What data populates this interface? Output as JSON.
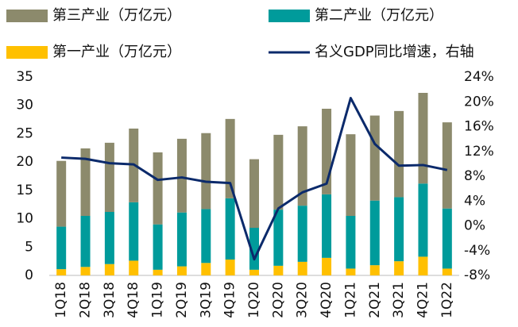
{
  "chart_data": {
    "type": "bar",
    "categories": [
      "1Q18",
      "2Q18",
      "3Q18",
      "4Q18",
      "1Q19",
      "2Q19",
      "3Q19",
      "4Q19",
      "1Q20",
      "2Q20",
      "3Q20",
      "4Q20",
      "1Q21",
      "2Q21",
      "3Q21",
      "4Q21",
      "1Q22"
    ],
    "stacked": true,
    "series": [
      {
        "name": "第三产业（万亿元）",
        "color": "#8c8a6c",
        "values": [
          11.6,
          11.9,
          12.2,
          13.0,
          12.7,
          13.0,
          13.4,
          14.0,
          12.1,
          13.2,
          14.0,
          15.1,
          14.4,
          15.0,
          15.2,
          16.0,
          15.2
        ]
      },
      {
        "name": "第二产业（万亿元）",
        "color": "#009b9b",
        "values": [
          7.5,
          9.0,
          9.2,
          10.3,
          8.0,
          9.5,
          9.5,
          10.8,
          7.4,
          9.9,
          9.9,
          11.2,
          9.3,
          11.4,
          11.3,
          12.9,
          10.6
        ]
      },
      {
        "name": "第一产业（万亿元）",
        "color": "#ffc000",
        "values": [
          1.1,
          1.5,
          2.0,
          2.6,
          1.0,
          1.6,
          2.2,
          2.8,
          1.0,
          1.7,
          2.4,
          3.1,
          1.2,
          1.8,
          2.5,
          3.3,
          1.2
        ]
      },
      {
        "name": "名义GDP同比增速，右轴",
        "color": "#0b2a6b",
        "type": "line",
        "axis": "y2",
        "values": [
          11.0,
          10.8,
          10.1,
          9.9,
          7.4,
          7.8,
          7.1,
          6.9,
          -5.4,
          2.8,
          5.4,
          6.8,
          20.6,
          13.2,
          9.7,
          9.8,
          9.0
        ]
      }
    ],
    "ylim": [
      0,
      35
    ],
    "yticks": [
      0,
      5,
      10,
      15,
      20,
      25,
      30,
      35
    ],
    "y2lim": [
      -8,
      24
    ],
    "y2ticks": [
      {
        "value": -8,
        "label": "-8%"
      },
      {
        "value": -4,
        "label": "-4%"
      },
      {
        "value": 0,
        "label": "0%"
      },
      {
        "value": 4,
        "label": "4%"
      },
      {
        "value": 8,
        "label": "8%"
      },
      {
        "value": 12,
        "label": "12%"
      },
      {
        "value": 16,
        "label": "16%"
      },
      {
        "value": 20,
        "label": "20%"
      },
      {
        "value": 24,
        "label": "24%"
      }
    ],
    "grid": false
  }
}
